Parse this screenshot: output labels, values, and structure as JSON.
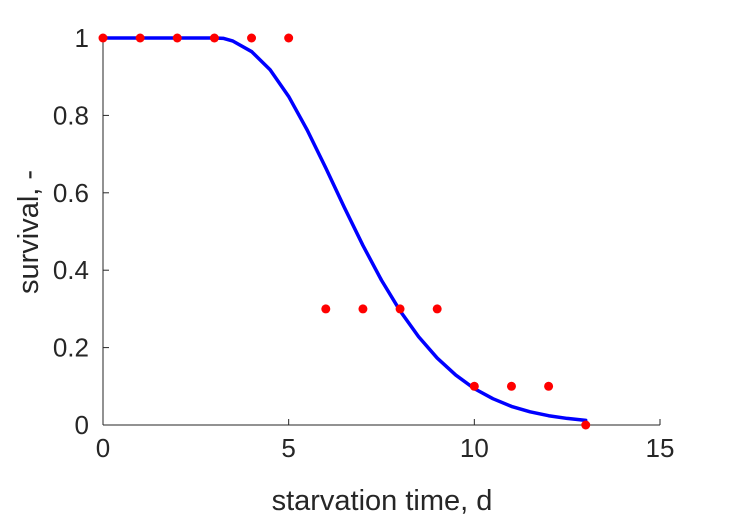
{
  "chart_data": {
    "type": "scatter",
    "title": "",
    "xlabel": "starvation time, d",
    "ylabel": "survival, -",
    "xlim": [
      0,
      15
    ],
    "ylim": [
      0,
      1
    ],
    "xticks": [
      0,
      5,
      10,
      15
    ],
    "yticks": [
      0,
      0.2,
      0.4,
      0.6,
      0.8,
      1
    ],
    "xtick_labels": [
      "0",
      "5",
      "10",
      "15"
    ],
    "ytick_labels": [
      "0",
      "0.2",
      "0.4",
      "0.6",
      "0.8",
      "1"
    ],
    "grid": false,
    "legend": false,
    "series": [
      {
        "kind": "scatter",
        "color": "#ff0000",
        "x": [
          0,
          1,
          2,
          3,
          4,
          5,
          6,
          7,
          8,
          9,
          10,
          11,
          12,
          13
        ],
        "y": [
          1,
          1,
          1,
          1,
          1,
          1,
          0.3,
          0.3,
          0.3,
          0.3,
          0.1,
          0.1,
          0.1,
          0
        ]
      },
      {
        "kind": "line",
        "color": "#0000ff",
        "x": [
          0,
          1,
          2,
          3,
          3.25,
          3.5,
          4,
          4.5,
          5,
          5.5,
          6,
          6.5,
          7,
          7.5,
          8,
          8.5,
          9,
          9.5,
          10,
          10.5,
          11,
          11.5,
          12,
          12.5,
          13
        ],
        "y": [
          1,
          1,
          1,
          1,
          0.999,
          0.992,
          0.965,
          0.918,
          0.849,
          0.762,
          0.664,
          0.562,
          0.464,
          0.374,
          0.295,
          0.228,
          0.173,
          0.129,
          0.094,
          0.068,
          0.048,
          0.034,
          0.024,
          0.017,
          0.012
        ]
      }
    ]
  }
}
